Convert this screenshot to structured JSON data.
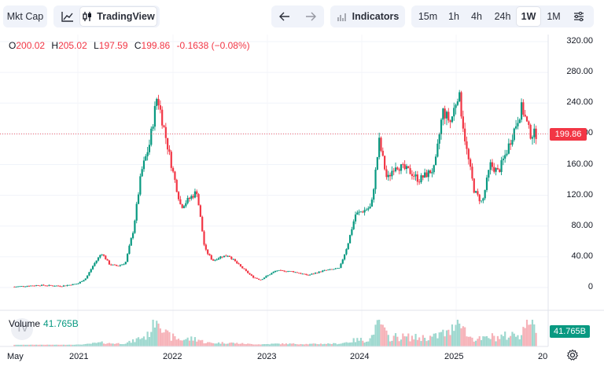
{
  "toolbar": {
    "mktcap_label": "Mkt Cap",
    "line_icon": "line-chart-icon",
    "tradingview_icon": "candles-icon",
    "tradingview_label": "TradingView",
    "back_icon": "arrow-left-icon",
    "forward_icon": "arrow-right-icon",
    "indicators_icon": "bar-chart-icon",
    "indicators_label": "Indicators",
    "timeframes": [
      "15m",
      "1h",
      "4h",
      "24h",
      "1W",
      "1M"
    ],
    "active_timeframe": "1W",
    "settings_icon": "sliders-icon"
  },
  "ohlc": {
    "o_key": "O",
    "o_val": "200.02",
    "h_key": "H",
    "h_val": "205.02",
    "l_key": "L",
    "l_val": "197.59",
    "c_key": "C",
    "c_val": "199.86",
    "change": "-0.1638 (−0.08%)"
  },
  "volume_legend": {
    "label": "Volume",
    "value": "41.765B"
  },
  "price_tag": "199.86",
  "volume_tag": "41.765B",
  "gear_icon": "gear-icon",
  "colors": {
    "up": "#089981",
    "down": "#f23645",
    "up_vol": "#9ed8cf",
    "down_vol": "#f6b2b8"
  },
  "chart_data": {
    "type": "candlestick",
    "interval": "1W",
    "y_ticks": [
      "320.00",
      "280.00",
      "240.00",
      "200.00",
      "160.00",
      "120.00",
      "80.00",
      "40.00",
      "0"
    ],
    "ylim": [
      0,
      320
    ],
    "x_ticks": [
      "May",
      "2021",
      "2022",
      "2023",
      "2024",
      "2025",
      "20"
    ],
    "last_close": 199.86,
    "last_volume": "41.765B",
    "price_path": [
      [
        "2020-05",
        1
      ],
      [
        "2020-08",
        3
      ],
      [
        "2020-11",
        2
      ],
      [
        "2021-01",
        5
      ],
      [
        "2021-02",
        12
      ],
      [
        "2021-03",
        30
      ],
      [
        "2021-04",
        45
      ],
      [
        "2021-05",
        30
      ],
      [
        "2021-06",
        28
      ],
      [
        "2021-07",
        32
      ],
      [
        "2021-08",
        75
      ],
      [
        "2021-09",
        150
      ],
      [
        "2021-10",
        185
      ],
      [
        "2021-11",
        250
      ],
      [
        "2021-12",
        200
      ],
      [
        "2022-01",
        150
      ],
      [
        "2022-02",
        105
      ],
      [
        "2022-03",
        115
      ],
      [
        "2022-04",
        125
      ],
      [
        "2022-05",
        50
      ],
      [
        "2022-06",
        35
      ],
      [
        "2022-07",
        40
      ],
      [
        "2022-08",
        42
      ],
      [
        "2022-09",
        32
      ],
      [
        "2022-11",
        14
      ],
      [
        "2022-12",
        10
      ],
      [
        "2023-02",
        22
      ],
      [
        "2023-04",
        21
      ],
      [
        "2023-06",
        16
      ],
      [
        "2023-08",
        22
      ],
      [
        "2023-10",
        25
      ],
      [
        "2023-11",
        55
      ],
      [
        "2023-12",
        95
      ],
      [
        "2024-02",
        105
      ],
      [
        "2024-03",
        190
      ],
      [
        "2024-04",
        140
      ],
      [
        "2024-05",
        160
      ],
      [
        "2024-07",
        150
      ],
      [
        "2024-08",
        140
      ],
      [
        "2024-10",
        155
      ],
      [
        "2024-11",
        230
      ],
      [
        "2024-12",
        215
      ],
      [
        "2025-01",
        255
      ],
      [
        "2025-02",
        180
      ],
      [
        "2025-03",
        125
      ],
      [
        "2025-04",
        110
      ],
      [
        "2025-05",
        160
      ],
      [
        "2025-06",
        150
      ],
      [
        "2025-07",
        175
      ],
      [
        "2025-08",
        205
      ],
      [
        "2025-09",
        235
      ],
      [
        "2025-10",
        200
      ],
      [
        "2025-11",
        199.86
      ]
    ],
    "volume_peaks": [
      [
        "2021-11",
        "high"
      ],
      [
        "2024-03",
        "high"
      ],
      [
        "2025-01",
        "high"
      ],
      [
        "2025-10",
        "high"
      ]
    ]
  }
}
